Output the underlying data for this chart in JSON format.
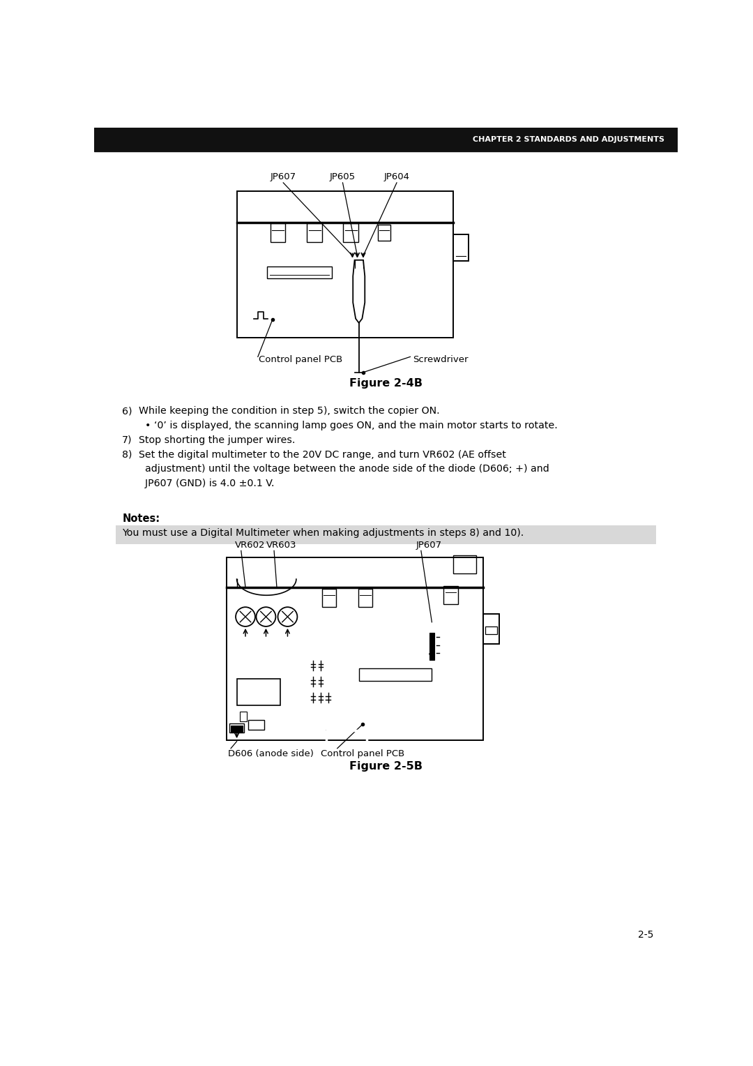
{
  "bg_color": "#ffffff",
  "header_bar_color": "#111111",
  "header_text": "CHAPTER 2 STANDARDS AND ADJUSTMENTS",
  "header_text_color": "#ffffff",
  "figure_4b_title": "Figure 2-4B",
  "figure_5b_title": "Figure 2-5B",
  "notes_label": "Notes:",
  "notes_bg": "#d8d8d8",
  "notes_text": "You must use a Digital Multimeter when making adjustments in steps 8) and 10).",
  "body_text": [
    [
      "6)",
      "While keeping the condition in step 5), switch the copier ON."
    ],
    [
      "",
      "  • ‘0’ is displayed, the scanning lamp goes ON, and the main motor starts to rotate."
    ],
    [
      "7)",
      "Stop shorting the jumper wires."
    ],
    [
      "8)",
      "Set the digital multimeter to the 20V DC range, and turn VR602 (AE offset"
    ],
    [
      "",
      "  adjustment) until the voltage between the anode side of the diode (D606; +) and"
    ],
    [
      "",
      "  JP607 (GND) is 4.0 ±0.1 V."
    ]
  ],
  "page_number": "2-5",
  "fig4b_labels": [
    "JP607",
    "JP605",
    "JP604",
    "Control panel PCB",
    "Screwdriver"
  ],
  "fig5b_labels": [
    "VR602",
    "VR603",
    "JP607",
    "D606 (anode side)",
    "Control panel PCB"
  ]
}
